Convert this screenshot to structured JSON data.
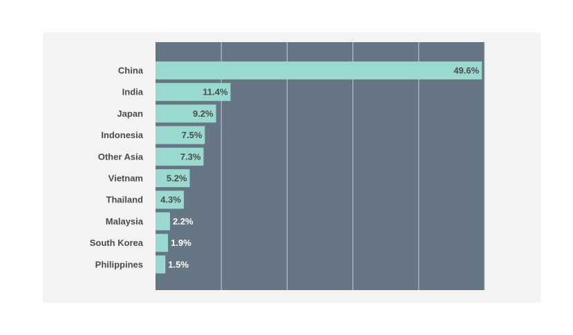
{
  "chart_data": {
    "type": "bar",
    "orientation": "horizontal",
    "title": "",
    "xlabel": "",
    "ylabel": "",
    "categories": [
      "China",
      "India",
      "Japan",
      "Indonesia",
      "Other Asia",
      "Vietnam",
      "Thailand",
      "Malaysia",
      "South Korea",
      "Philippines"
    ],
    "values": [
      49.6,
      11.4,
      9.2,
      7.5,
      7.3,
      5.2,
      4.3,
      2.2,
      1.9,
      1.5
    ],
    "value_labels": [
      "49.6%",
      "11.4%",
      "9.2%",
      "7.5%",
      "7.3%",
      "5.2%",
      "4.3%",
      "2.2%",
      "1.9%",
      "1.5%"
    ],
    "xlim": [
      0,
      50
    ],
    "grid": true,
    "legend": "none",
    "colors": {
      "bar": "#9ad9d0",
      "plot_bg": "#677685",
      "gridline": "#c7ced5",
      "label_inside": "#4a4a4a",
      "label_outside": "#ffffff"
    }
  }
}
